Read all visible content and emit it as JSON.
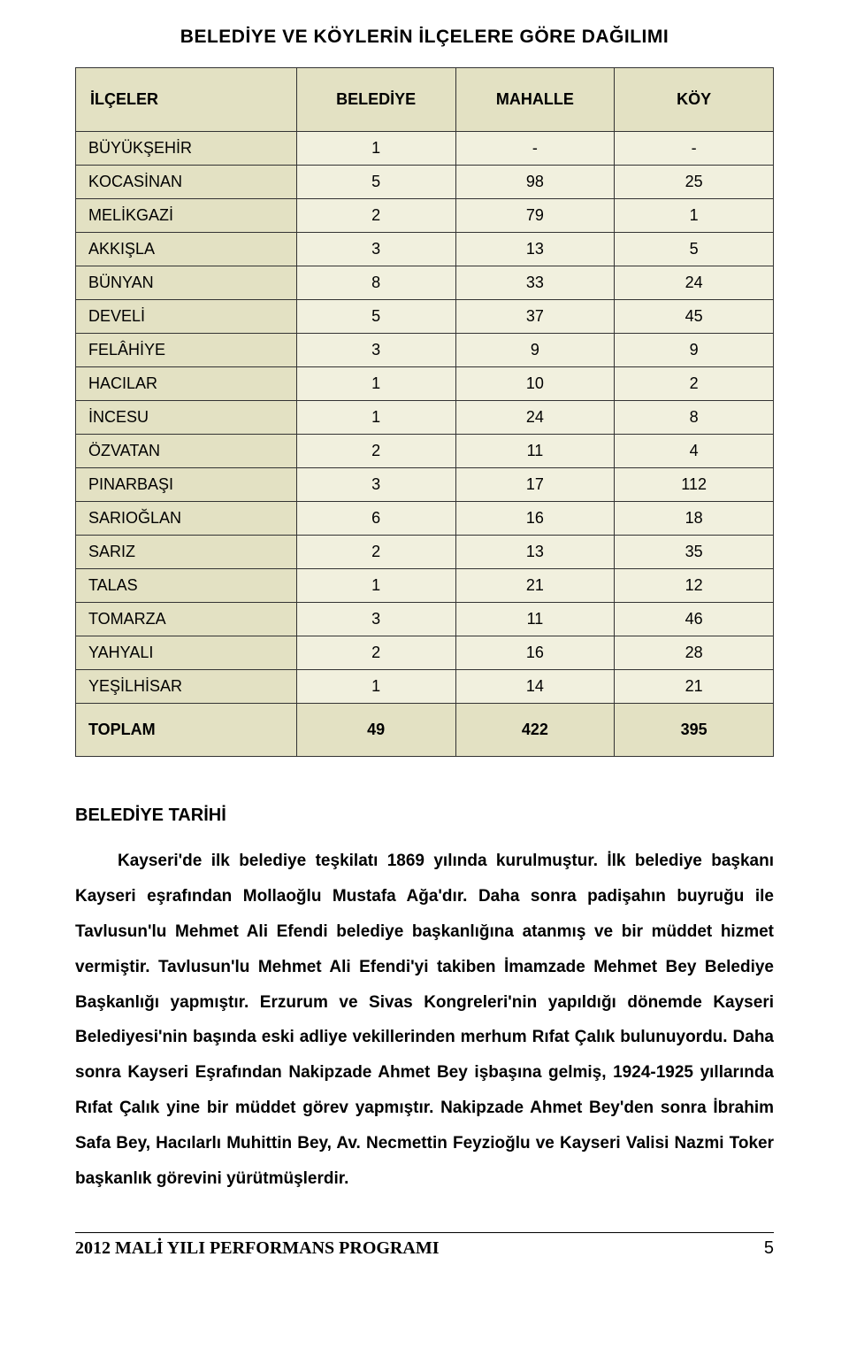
{
  "table": {
    "title": "BELEDİYE VE KÖYLERİN İLÇELERE GÖRE DAĞILIMI",
    "columns": [
      "İLÇELER",
      "BELEDİYE",
      "MAHALLE",
      "KÖY"
    ],
    "rows": [
      [
        "BÜYÜKŞEHİR",
        "1",
        "-",
        "-"
      ],
      [
        "KOCASİNAN",
        "5",
        "98",
        "25"
      ],
      [
        "MELİKGAZİ",
        "2",
        "79",
        "1"
      ],
      [
        "AKKIŞLA",
        "3",
        "13",
        "5"
      ],
      [
        "BÜNYAN",
        "8",
        "33",
        "24"
      ],
      [
        "DEVELİ",
        "5",
        "37",
        "45"
      ],
      [
        "FELÂHİYE",
        "3",
        "9",
        "9"
      ],
      [
        "HACILAR",
        "1",
        "10",
        "2"
      ],
      [
        "İNCESU",
        "1",
        "24",
        "8"
      ],
      [
        "ÖZVATAN",
        "2",
        "11",
        "4"
      ],
      [
        "PINARBAŞI",
        "3",
        "17",
        "112"
      ],
      [
        "SARIOĞLAN",
        "6",
        "16",
        "18"
      ],
      [
        "SARIZ",
        "2",
        "13",
        "35"
      ],
      [
        "TALAS",
        "1",
        "21",
        "12"
      ],
      [
        "TOMARZA",
        "3",
        "11",
        "46"
      ],
      [
        "YAHYALI",
        "2",
        "16",
        "28"
      ],
      [
        "YEŞİLHİSAR",
        "1",
        "14",
        "21"
      ]
    ],
    "total_label": "TOPLAM",
    "total": [
      "49",
      "422",
      "395"
    ],
    "header_bg": "#e3e1c3",
    "cell_bg": "#f1f0de",
    "border_color": "#333333"
  },
  "section": {
    "title": "BELEDİYE TARİHİ",
    "body": "Kayseri'de ilk belediye teşkilatı 1869 yılında kurulmuştur. İlk belediye başkanı Kayseri eşrafından Mollaoğlu Mustafa Ağa'dır. Daha sonra padişahın buyruğu ile Tavlusun'lu Mehmet Ali Efendi belediye başkanlığına atanmış ve bir müddet hizmet vermiştir. Tavlusun'lu Mehmet Ali Efendi'yi takiben İmamzade Mehmet Bey Belediye Başkanlığı yapmıştır. Erzurum ve Sivas Kongreleri'nin yapıldığı dönemde Kayseri Belediyesi'nin başında eski adliye vekillerinden merhum Rıfat Çalık bulunuyordu. Daha sonra Kayseri Eşrafından Nakipzade Ahmet Bey işbaşına gelmiş, 1924-1925 yıllarında Rıfat Çalık yine bir müddet görev yapmıştır. Nakipzade Ahmet Bey'den sonra İbrahim Safa Bey, Hacılarlı Muhittin Bey, Av. Necmettin Feyzioğlu ve Kayseri Valisi Nazmi Toker başkanlık görevini yürütmüşlerdir."
  },
  "footer": {
    "text": "2012 MALİ YILI PERFORMANS PROGRAMI",
    "page": "5"
  }
}
